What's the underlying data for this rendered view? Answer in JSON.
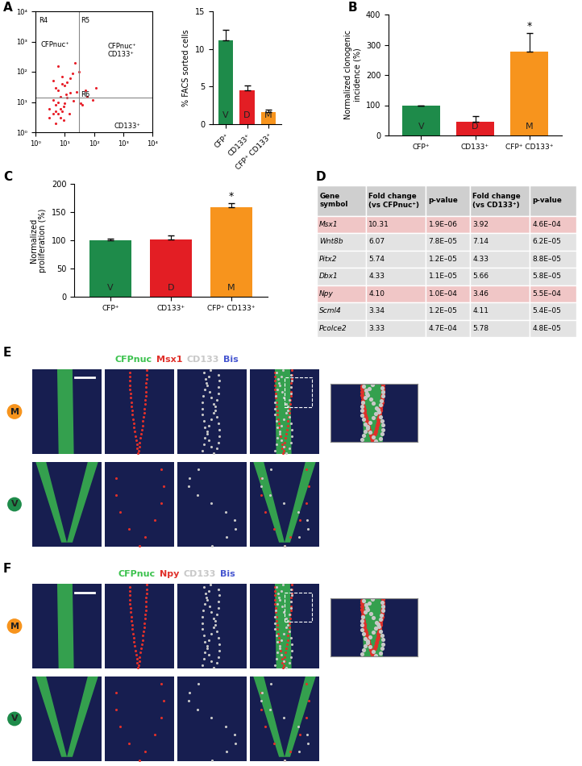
{
  "panel_labels": [
    "A",
    "B",
    "C",
    "D",
    "E",
    "F"
  ],
  "chart_data": [
    {
      "panel": "A",
      "type": "scatter",
      "log": true,
      "xlim": [
        1,
        10000
      ],
      "ylim": [
        1,
        10000
      ],
      "xticks": [
        {
          "value": 1,
          "label": "10⁰"
        },
        {
          "value": 10,
          "label": "10¹"
        },
        {
          "value": 100,
          "label": "10²"
        },
        {
          "value": 1000,
          "label": "10³"
        },
        {
          "value": 10000,
          "label": "10⁴"
        }
      ],
      "yticks": [
        {
          "value": 1,
          "label": "10⁰"
        },
        {
          "value": 10,
          "label": "10¹"
        },
        {
          "value": 100,
          "label": "10²"
        },
        {
          "value": 1000,
          "label": "10³"
        },
        {
          "value": 10000,
          "label": "10⁴"
        }
      ],
      "color": "#e8202a",
      "marker": "o",
      "x": [
        3,
        4,
        5,
        6,
        7,
        8,
        5,
        6,
        4,
        7,
        9,
        10,
        12,
        15,
        6,
        5,
        8,
        11,
        4,
        3,
        20,
        25,
        40,
        60,
        90,
        15,
        18,
        30,
        10,
        8,
        6,
        12,
        7,
        5,
        9,
        14,
        50,
        120,
        22,
        35
      ],
      "y": [
        3,
        4,
        5,
        4,
        6,
        5,
        8,
        10,
        12,
        15,
        7,
        9,
        14,
        20,
        25,
        30,
        40,
        18,
        50,
        6,
        11,
        22,
        8,
        15,
        12,
        60,
        90,
        100,
        35,
        70,
        150,
        45,
        3,
        2,
        2.5,
        4,
        25,
        30,
        200,
        9
      ],
      "gates": {
        "x": 30,
        "y": 14
      },
      "annotations": [
        {
          "text": "R4",
          "x": 1.3,
          "y": 5000
        },
        {
          "text": "R5",
          "x": 35,
          "y": 5000
        },
        {
          "text": "R6",
          "x": 35,
          "y": 17
        },
        {
          "text": "CFPnuc⁺",
          "x": 1.5,
          "y": 800
        },
        {
          "text": "CFPnuc⁺\nCD133⁺",
          "x": 300,
          "y": 500
        },
        {
          "text": "CD133⁺",
          "x": 500,
          "y": 1.6
        }
      ]
    },
    {
      "panel": "A",
      "type": "bar",
      "categories": [
        "CFP⁺",
        "CD133⁺",
        "CFP⁺ CD133⁺"
      ],
      "values": [
        11.1,
        4.5,
        1.6
      ],
      "errors": [
        1.4,
        0.6,
        0.3
      ],
      "colors": [
        "#1e8b4a",
        "#e31e24",
        "#f7941d"
      ],
      "bar_text": [
        "V",
        "D",
        "M"
      ],
      "significance": [
        null,
        null,
        null
      ],
      "ylabel": "% FACS sorted cells",
      "ylim": [
        0,
        15
      ],
      "yticks": [
        0,
        5,
        10,
        15
      ]
    },
    {
      "panel": "B",
      "type": "bar",
      "categories": [
        "CFP⁺",
        "CD133⁺",
        "CFP⁺ CD133⁺"
      ],
      "values": [
        100,
        45,
        278
      ],
      "errors": [
        0,
        18,
        62
      ],
      "colors": [
        "#1e8b4a",
        "#e31e24",
        "#f7941d"
      ],
      "bar_text": [
        "V",
        "D",
        "M"
      ],
      "significance": [
        null,
        null,
        "*"
      ],
      "ylabel": "Normalized clonogenic\nincidence (%)",
      "ylim": [
        0,
        400
      ],
      "yticks": [
        0,
        100,
        200,
        300,
        400
      ]
    },
    {
      "panel": "C",
      "type": "bar",
      "categories": [
        "CFP⁺",
        "CD133⁺",
        "CFP⁺ CD133⁺"
      ],
      "values": [
        100,
        101,
        158
      ],
      "errors": [
        3,
        7,
        8
      ],
      "colors": [
        "#1e8b4a",
        "#e31e24",
        "#f7941d"
      ],
      "bar_text": [
        "V",
        "D",
        "M"
      ],
      "significance": [
        null,
        null,
        "*"
      ],
      "ylabel": "Normalized\nproliferation (%)",
      "ylim": [
        0,
        200
      ],
      "yticks": [
        0,
        50,
        100,
        150,
        200
      ]
    }
  ],
  "table": {
    "panel": "D",
    "columns": [
      "Gene\nsymbol",
      "Fold change\n(vs CFPnuc⁺)",
      "p-value",
      "Fold change\n(vs CD133⁺)",
      "p-value"
    ],
    "rows": [
      [
        "Msx1",
        "10.31",
        "1.9E–06",
        "3.92",
        "4.6E–04"
      ],
      [
        "Wnt8b",
        "6.07",
        "7.8E–05",
        "7.14",
        "6.2E–05"
      ],
      [
        "Pitx2",
        "5.74",
        "1.2E–05",
        "4.33",
        "8.8E–05"
      ],
      [
        "Dbx1",
        "4.33",
        "1.1E–05",
        "5.66",
        "5.8E–05"
      ],
      [
        "Npy",
        "4.10",
        "1.0E–04",
        "3.46",
        "5.5E–04"
      ],
      [
        "Scml4",
        "3.34",
        "1.2E–05",
        "4.11",
        "5.4E–05"
      ],
      [
        "Pcolce2",
        "3.33",
        "4.7E–04",
        "5.78",
        "4.8E–05"
      ]
    ],
    "highlight": [
      true,
      false,
      false,
      false,
      true,
      false,
      false
    ],
    "highlight_color": "#f0c6c6",
    "color": "#e3e3e3",
    "header_color": "#cfcfcf"
  },
  "micrographs": [
    {
      "panel": "E",
      "channels": [
        {
          "name": "CFPnuc",
          "color": "#3cc24e"
        },
        {
          "name": "Msx1",
          "color": "#e0302a"
        },
        {
          "name": "CD133",
          "color": "#c8c8c8"
        },
        {
          "name": "Bis",
          "color": "#4656d0"
        }
      ],
      "rows": [
        {
          "label": "M",
          "color": "#f7941d"
        },
        {
          "label": "V",
          "color": "#1e8b4a"
        }
      ]
    },
    {
      "panel": "F",
      "channels": [
        {
          "name": "CFPnuc",
          "color": "#3cc24e"
        },
        {
          "name": "Npy",
          "color": "#e0302a"
        },
        {
          "name": "CD133",
          "color": "#c8c8c8"
        },
        {
          "name": "Bis",
          "color": "#4656d0"
        }
      ],
      "rows": [
        {
          "label": "M",
          "color": "#f7941d"
        },
        {
          "label": "V",
          "color": "#1e8b4a"
        }
      ]
    }
  ]
}
